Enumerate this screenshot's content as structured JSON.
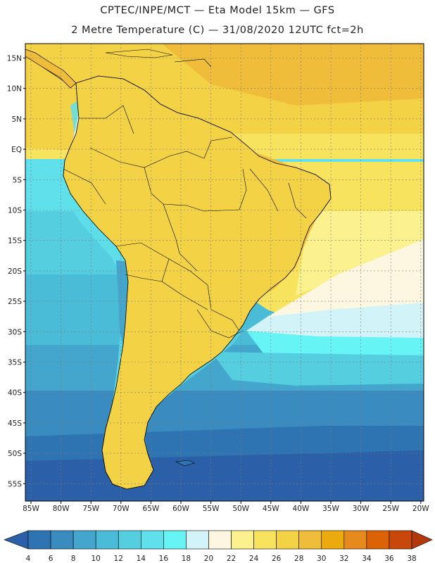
{
  "title_line1": "CPTEC/INPE/MCT —  Eta Model 15km — GFS",
  "title_line2": "2 Metre Temperature (C) — 31/08/2020 12UTC fct=2h",
  "lat_labels": [
    "15N",
    "10N",
    "5N",
    "EQ",
    "5S",
    "10S",
    "15S",
    "20S",
    "25S",
    "30S",
    "35S",
    "40S",
    "45S",
    "50S",
    "55S"
  ],
  "lon_labels": [
    "85W",
    "80W",
    "75W",
    "70W",
    "65W",
    "60W",
    "55W",
    "50W",
    "45W",
    "40W",
    "35W",
    "30W",
    "25W",
    "20W"
  ],
  "colorbar": {
    "values": [
      "4",
      "6",
      "8",
      "10",
      "12",
      "14",
      "16",
      "18",
      "20",
      "22",
      "24",
      "26",
      "28",
      "30",
      "32",
      "34",
      "36",
      "38"
    ],
    "colors": [
      "#2b60a8",
      "#2f74b2",
      "#3a8cc0",
      "#44a6cc",
      "#4bbcd7",
      "#55cfe0",
      "#5fe0ea",
      "#66f4f4",
      "#d2f4f9",
      "#fdf6e0",
      "#fbf28f",
      "#f8e35e",
      "#f4d246",
      "#efbd3a",
      "#ebaa0e",
      "#e68a1e",
      "#dc6206",
      "#c8480c",
      "#b3380c"
    ]
  }
}
